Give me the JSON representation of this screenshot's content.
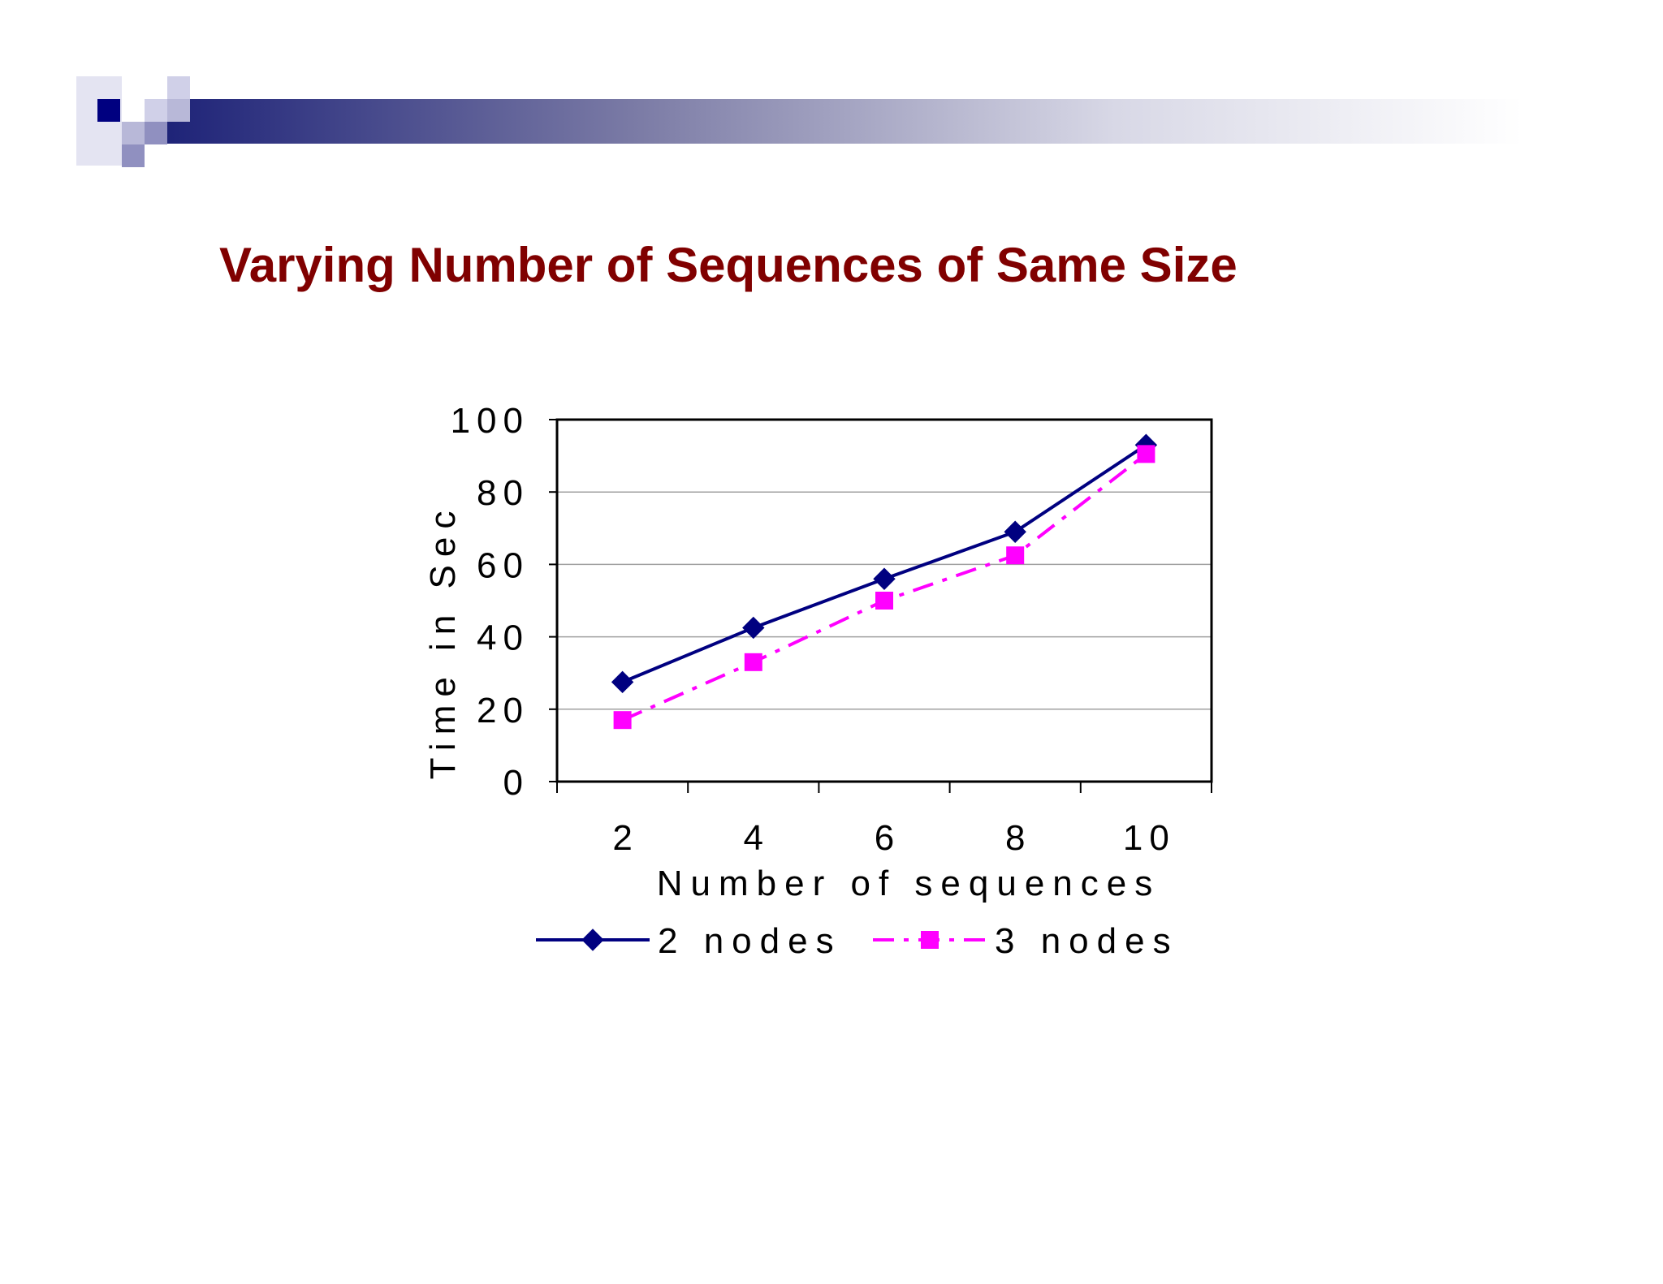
{
  "slide": {
    "title": "Varying Number of Sequences of Same Size"
  },
  "colors": {
    "title": "#800000",
    "header_dark": "#000080",
    "header_light": "#ccccee",
    "series_2_nodes": "#000080",
    "series_3_nodes": "#ff00ff"
  },
  "chart_data": {
    "type": "line",
    "title": "",
    "xlabel": "Number of sequences",
    "ylabel": "Time in Sec",
    "categories": [
      "2",
      "4",
      "6",
      "8",
      "10"
    ],
    "ylim": [
      0,
      100
    ],
    "yticks": [
      0,
      20,
      40,
      60,
      80,
      100
    ],
    "yticks_labels": [
      "0",
      "20",
      "40",
      "60",
      "80",
      "100"
    ],
    "grid": true,
    "legend_position": "bottom",
    "series": [
      {
        "name": "2 nodes",
        "values": [
          27.5,
          42.5,
          56,
          69,
          93
        ],
        "line_style": "solid",
        "marker": "diamond",
        "color": "#000080"
      },
      {
        "name": "3 nodes",
        "values": [
          17,
          33,
          50,
          62.5,
          90.5
        ],
        "line_style": "dash-dot",
        "marker": "square",
        "color": "#ff00ff"
      }
    ]
  }
}
